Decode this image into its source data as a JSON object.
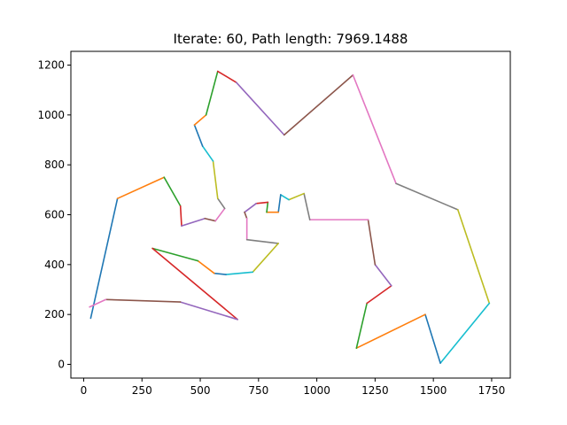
{
  "chart_data": {
    "type": "line",
    "title": "Iterate: 60,  Path length: 7969.1488",
    "xlabel": "",
    "ylabel": "",
    "xlim": [
      -55,
      1830
    ],
    "ylim": [
      -55,
      1255
    ],
    "xticks": [
      0,
      250,
      500,
      750,
      1000,
      1250,
      1500,
      1750
    ],
    "yticks": [
      0,
      200,
      400,
      600,
      800,
      1000,
      1200
    ],
    "grid": false,
    "legend": false,
    "color_cycle": [
      "#1f77b4",
      "#ff7f0e",
      "#2ca02c",
      "#d62728",
      "#9467bd",
      "#8c564b",
      "#e377c2",
      "#7f7f7f",
      "#bcbd22",
      "#17becf"
    ],
    "path": [
      [
        30,
        185
      ],
      [
        145,
        665
      ],
      [
        345,
        750
      ],
      [
        415,
        635
      ],
      [
        420,
        555
      ],
      [
        520,
        585
      ],
      [
        565,
        575
      ],
      [
        605,
        625
      ],
      [
        575,
        665
      ],
      [
        555,
        815
      ],
      [
        510,
        875
      ],
      [
        475,
        960
      ],
      [
        525,
        1000
      ],
      [
        575,
        1175
      ],
      [
        655,
        1130
      ],
      [
        860,
        920
      ],
      [
        1155,
        1160
      ],
      [
        1340,
        725
      ],
      [
        1605,
        620
      ],
      [
        1740,
        245
      ],
      [
        1530,
        5
      ],
      [
        1465,
        200
      ],
      [
        1170,
        65
      ],
      [
        1215,
        245
      ],
      [
        1320,
        315
      ],
      [
        1250,
        400
      ],
      [
        1220,
        580
      ],
      [
        970,
        580
      ],
      [
        945,
        685
      ],
      [
        880,
        660
      ],
      [
        845,
        680
      ],
      [
        835,
        610
      ],
      [
        785,
        610
      ],
      [
        790,
        650
      ],
      [
        740,
        645
      ],
      [
        690,
        610
      ],
      [
        700,
        585
      ],
      [
        700,
        500
      ],
      [
        835,
        485
      ],
      [
        725,
        370
      ],
      [
        610,
        360
      ],
      [
        560,
        365
      ],
      [
        490,
        415
      ],
      [
        295,
        465
      ],
      [
        660,
        180
      ],
      [
        415,
        250
      ],
      [
        95,
        260
      ],
      [
        25,
        230
      ]
    ]
  }
}
